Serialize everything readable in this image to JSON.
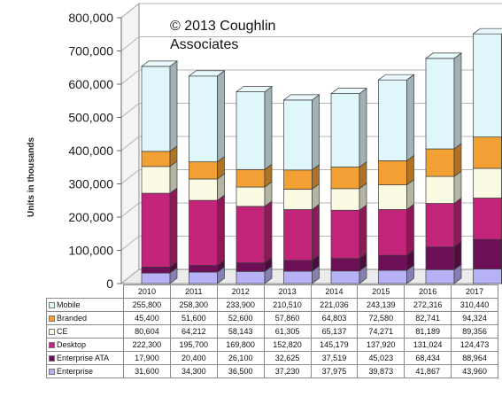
{
  "chart_data": {
    "type": "bar",
    "stacked": true,
    "annotation": "© 2013 Coughlin Associates",
    "xlabel": "",
    "ylabel": "Units in thousands",
    "ylim": [
      0,
      800000
    ],
    "yticks": [
      "0",
      "100,000",
      "200,000",
      "300,000",
      "400,000",
      "500,000",
      "600,000",
      "700,000",
      "800,000"
    ],
    "ytick_values": [
      0,
      100000,
      200000,
      300000,
      400000,
      500000,
      600000,
      700000,
      800000
    ],
    "grid": true,
    "legend": "table-below",
    "categories": [
      "2010",
      "2011",
      "2012",
      "2013",
      "2014",
      "2015",
      "2016",
      "2017"
    ],
    "series": [
      {
        "name": "Mobile",
        "color": "#dff6fb",
        "values": [
          255800,
          258300,
          233900,
          210510,
          221036,
          243139,
          272316,
          310440
        ],
        "labels": [
          "255,800",
          "258,300",
          "233,900",
          "210,510",
          "221,036",
          "243,139",
          "272,316",
          "310,440"
        ]
      },
      {
        "name": "Branded",
        "color": "#f2a033",
        "values": [
          45400,
          51600,
          52600,
          57860,
          64803,
          72580,
          82741,
          94324
        ],
        "labels": [
          "45,400",
          "51,600",
          "52,600",
          "57,860",
          "64,803",
          "72,580",
          "82,741",
          "94,324"
        ]
      },
      {
        "name": "CE",
        "color": "#fbfbe3",
        "values": [
          80604,
          64212,
          58143,
          61305,
          65137,
          74271,
          81189,
          89356
        ],
        "labels": [
          "80,604",
          "64,212",
          "58,143",
          "61,305",
          "65,137",
          "74,271",
          "81,189",
          "89,356"
        ]
      },
      {
        "name": "Desktop",
        "color": "#c2247a",
        "values": [
          222300,
          195700,
          169800,
          152820,
          145179,
          137920,
          131024,
          124473
        ],
        "labels": [
          "222,300",
          "195,700",
          "169,800",
          "152,820",
          "145,179",
          "137,920",
          "131,024",
          "124,473"
        ]
      },
      {
        "name": "Enterprise ATA",
        "color": "#6d0f56",
        "values": [
          17900,
          20400,
          26100,
          32625,
          37519,
          45023,
          68434,
          88964
        ],
        "labels": [
          "17,900",
          "20,400",
          "26,100",
          "32,625",
          "37,519",
          "45,023",
          "68,434",
          "88,964"
        ]
      },
      {
        "name": "Enterprise",
        "color": "#b7b2f5",
        "values": [
          31600,
          34300,
          36500,
          37230,
          37975,
          39873,
          41867,
          43960
        ],
        "labels": [
          "31,600",
          "34,300",
          "36,500",
          "37,230",
          "37,975",
          "39,873",
          "41,867",
          "43,960"
        ]
      }
    ]
  }
}
